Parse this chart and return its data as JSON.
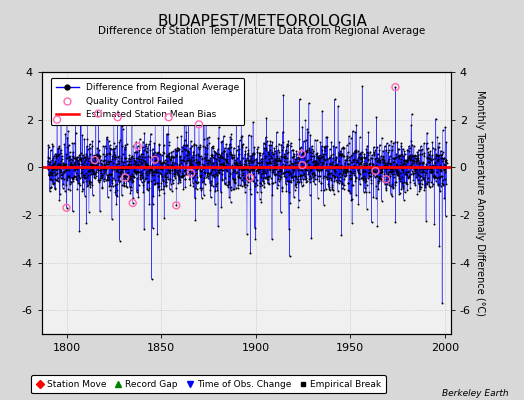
{
  "title": "BUDAPEST/METEOROLOGIA",
  "subtitle": "Difference of Station Temperature Data from Regional Average",
  "ylabel": "Monthly Temperature Anomaly Difference (°C)",
  "xlabel_years": [
    1800,
    1850,
    1900,
    1950,
    2000
  ],
  "xlim": [
    1787,
    2003
  ],
  "ylim": [
    -7,
    4
  ],
  "yticks_right": [
    -6,
    -4,
    -2,
    0,
    2,
    4
  ],
  "yticks_left": [
    -6,
    -4,
    -2,
    0,
    2,
    4
  ],
  "red_line_y": 0.0,
  "background_color": "#d8d8d8",
  "plot_bg_color": "#f0f0f0",
  "blue_line_color": "#0000ff",
  "red_line_color": "#ff0000",
  "marker_color": "#000000",
  "qc_color": "#ff69b4",
  "seed": 42,
  "watermark": "Berkeley Earth"
}
